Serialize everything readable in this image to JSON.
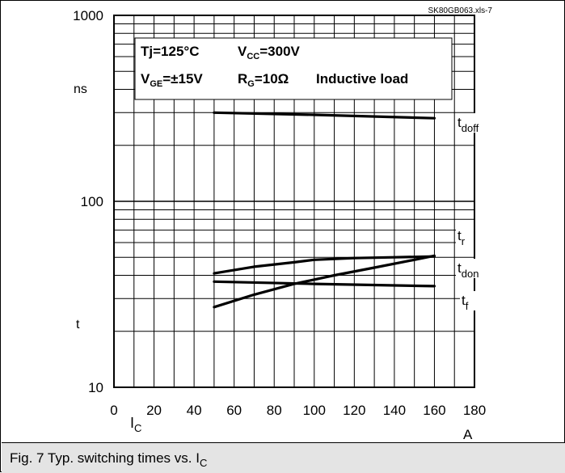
{
  "caption": {
    "text": "Fig. 7 Typ. switching times vs. I",
    "subscript": "C"
  },
  "chart_data": {
    "type": "line",
    "source_label": "SK80GB063.xls-7",
    "x": {
      "ticks": [
        0,
        20,
        40,
        60,
        80,
        100,
        120,
        140,
        160,
        180
      ],
      "range": [
        0,
        180
      ],
      "symbol": "I",
      "symbol_sub": "C",
      "unit": "A"
    },
    "y": {
      "scale": "log",
      "range": [
        10,
        1000
      ],
      "tick_labels": [
        "10",
        "100",
        "1000"
      ],
      "unit": "ns",
      "symbol": "t"
    },
    "grid": true,
    "conditions": {
      "tj": "Tj=125°C",
      "vcc_main": "V",
      "vcc_sub": "CC",
      "vcc_val": "=300V",
      "vge_main": "V",
      "vge_sub": "GE",
      "vge_val": "=±15V",
      "rg_main": "R",
      "rg_sub": "G",
      "rg_val": "=10Ω",
      "load": "Inductive load"
    },
    "series": [
      {
        "name": "t_doff",
        "label_main": "t",
        "label_sub": "doff",
        "x": [
          50,
          100,
          160
        ],
        "y": [
          300,
          292,
          280
        ]
      },
      {
        "name": "t_r",
        "label_main": "t",
        "label_sub": "r",
        "x": [
          50,
          70,
          90,
          100,
          120,
          140,
          160
        ],
        "y": [
          41,
          44.5,
          47,
          48.5,
          49.5,
          50,
          50.5
        ]
      },
      {
        "name": "t_don",
        "label_main": "t",
        "label_sub": "don",
        "x": [
          50,
          70,
          90,
          110,
          130,
          150,
          160
        ],
        "y": [
          27,
          31.5,
          36,
          40,
          44,
          48.5,
          51
        ]
      },
      {
        "name": "t_f",
        "label_main": "t",
        "label_sub": "f",
        "x": [
          50,
          100,
          160
        ],
        "y": [
          37,
          36,
          35
        ]
      }
    ]
  }
}
